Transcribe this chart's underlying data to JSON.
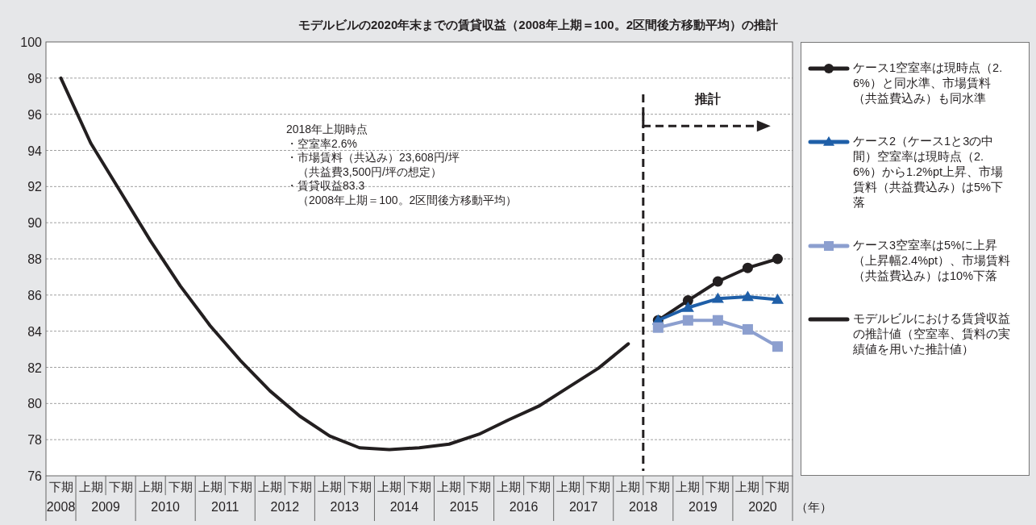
{
  "chart_data": {
    "type": "line",
    "title": "モデルビルの2020年末までの賃貸収益（2008年上期＝100。2区間後方移動平均）の推計",
    "categories": [
      "下期",
      "上期",
      "下期",
      "上期",
      "下期",
      "上期",
      "下期",
      "上期",
      "下期",
      "上期",
      "下期",
      "上期",
      "下期",
      "上期",
      "下期",
      "上期",
      "下期",
      "上期",
      "下期",
      "上期",
      "下期",
      "上期",
      "下期",
      "上期",
      "下期"
    ],
    "xlabel": "（年）",
    "series": [
      {
        "name": "ケース1空室率は現時点（2.6%）と同水準、市場賃料（共益費込み）も同水準",
        "color": "#231f20",
        "marker": "circle",
        "values": [
          null,
          null,
          null,
          null,
          null,
          null,
          null,
          null,
          null,
          null,
          null,
          null,
          null,
          null,
          null,
          null,
          null,
          null,
          null,
          null,
          84.6,
          85.7,
          86.75,
          87.5,
          88.0
        ]
      },
      {
        "name": "ケース2（ケース1と3の中間）空室率は現時点（2.6%）から1.2%pt上昇、市場賃料（共益費込み）は5%下落",
        "color": "#1f5fa8",
        "marker": "triangle",
        "values": [
          null,
          null,
          null,
          null,
          null,
          null,
          null,
          null,
          null,
          null,
          null,
          null,
          null,
          null,
          null,
          null,
          null,
          null,
          null,
          null,
          84.6,
          85.3,
          85.8,
          85.9,
          85.75
        ]
      },
      {
        "name": "ケース3空室率は5%に上昇（上昇幅2.4%pt）、市場賃料（共益費込み）は10%下落",
        "color": "#8c9fcf",
        "marker": "square",
        "values": [
          null,
          null,
          null,
          null,
          null,
          null,
          null,
          null,
          null,
          null,
          null,
          null,
          null,
          null,
          null,
          null,
          null,
          null,
          null,
          null,
          84.2,
          84.6,
          84.6,
          84.1,
          83.15
        ]
      },
      {
        "name": "モデルビルにおける賃貸収益の推計値（空室率、賃料の実績値を用いた推計値）",
        "color": "#231f20",
        "marker": "none",
        "values": [
          98.0,
          94.4,
          91.7,
          89.0,
          86.5,
          84.3,
          82.4,
          80.7,
          79.3,
          78.2,
          77.55,
          77.45,
          77.55,
          77.75,
          78.3,
          79.1,
          79.85,
          80.9,
          81.95,
          83.3,
          null,
          null,
          null,
          null,
          null
        ]
      }
    ],
    "ylim": [
      76,
      100
    ],
    "yticks": [
      76,
      78,
      80,
      82,
      84,
      86,
      88,
      90,
      92,
      94,
      96,
      98,
      100
    ],
    "grid": "y",
    "legend": "right",
    "line_style": "solid",
    "annotations": [
      "2018年上期時点",
      "・空室率2.6%",
      "・市場賃料（共込み）23,608円/坪",
      "　（共益費3,500円/坪の想定）",
      "・賃貸収益83.3",
      "　（2008年上期＝100。2区間後方移動平均）",
      "推計",
      "2008",
      "2009",
      "2010",
      "2011",
      "2012",
      "2013",
      "2014",
      "2015",
      "2016",
      "2017",
      "2018",
      "2019",
      "2020"
    ]
  }
}
